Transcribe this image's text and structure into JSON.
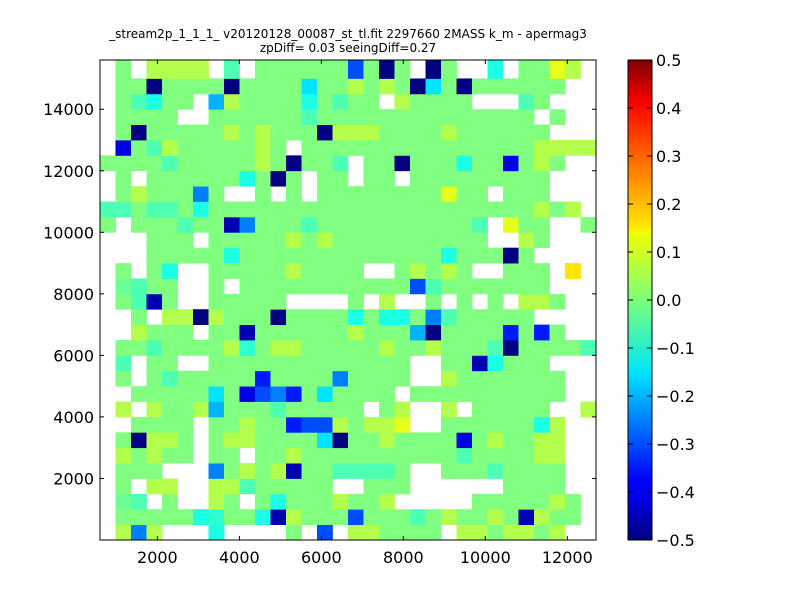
{
  "chart_data": {
    "type": "heatmap",
    "title_line1": "_stream2p_1_1_1_ v20120128_00087_st_tl.fit 2297660 2MASS k_m - apermag3",
    "title_line2": "zpDiff= 0.03 seeingDiff=0.27",
    "xlabel": "",
    "ylabel": "",
    "xlim": [
      600,
      12700
    ],
    "ylim": [
      0,
      15600
    ],
    "x_ticks": [
      "2000",
      "4000",
      "6000",
      "8000",
      "10000",
      "12000"
    ],
    "x_tick_values": [
      2000,
      4000,
      6000,
      8000,
      10000,
      12000
    ],
    "y_ticks": [
      "2000",
      "4000",
      "6000",
      "8000",
      "10000",
      "12000",
      "14000"
    ],
    "y_tick_values": [
      2000,
      4000,
      6000,
      8000,
      10000,
      12000,
      14000
    ],
    "x_edges": [
      600,
      978,
      1356,
      1734,
      2113,
      2491,
      2869,
      3247,
      3625,
      4003,
      4381,
      4759,
      5138,
      5516,
      5894,
      6272,
      6650,
      7028,
      7406,
      7784,
      8163,
      8541,
      8919,
      9297,
      9675,
      10053,
      10431,
      10809,
      11188,
      11566,
      11944,
      12322,
      12700
    ],
    "y_edges": [
      0,
      500,
      1000,
      1500,
      2000,
      2500,
      3000,
      3500,
      4000,
      4500,
      5000,
      5500,
      6000,
      6500,
      7000,
      7500,
      8000,
      8500,
      9000,
      9500,
      10000,
      10500,
      11000,
      11500,
      12000,
      12500,
      13000,
      13500,
      14000,
      14500,
      15000,
      15600
    ],
    "values": [
      [
        null,
        0.05,
        -0.25,
        0.05,
        null,
        null,
        null,
        -0.1,
        null,
        null,
        null,
        null,
        0.0,
        null,
        -0.3,
        null,
        0.05,
        0.05,
        0.0,
        0.0,
        0.0,
        0.0,
        null,
        0.05,
        0.05,
        0.0,
        0.05,
        0.05,
        0.0,
        0.05,
        null,
        null
      ],
      [
        null,
        0.0,
        0.0,
        0.0,
        0.0,
        0.0,
        -0.1,
        -0.08,
        0.0,
        0.0,
        -0.1,
        -0.45,
        0.05,
        0.0,
        0.0,
        0.0,
        -0.3,
        0.0,
        0.0,
        0.0,
        -0.05,
        0.0,
        0.05,
        0.0,
        0.0,
        0.05,
        0.0,
        -0.45,
        0.05,
        0.0,
        0.0,
        null
      ],
      [
        null,
        -0.02,
        -0.05,
        null,
        0.0,
        null,
        null,
        0.05,
        0.0,
        null,
        0.0,
        -0.1,
        0.0,
        0.0,
        0.0,
        0.05,
        0.0,
        0.0,
        0.05,
        null,
        null,
        null,
        null,
        null,
        0.0,
        0.0,
        0.0,
        0.0,
        0.0,
        0.05,
        0.0,
        null
      ],
      [
        null,
        0.0,
        null,
        0.05,
        0.05,
        null,
        null,
        0.05,
        0.05,
        -0.05,
        0.0,
        0.0,
        0.0,
        0.0,
        0.0,
        null,
        null,
        0.0,
        0.0,
        0.0,
        null,
        null,
        null,
        null,
        null,
        null,
        0.0,
        0.0,
        0.0,
        0.0,
        null,
        null
      ],
      [
        null,
        0.0,
        0.0,
        0.0,
        null,
        null,
        null,
        -0.25,
        0.0,
        0.05,
        0.0,
        0.05,
        -0.45,
        0.0,
        0.0,
        -0.05,
        -0.05,
        -0.05,
        -0.05,
        0.0,
        null,
        null,
        0.0,
        0.0,
        0.0,
        -0.05,
        0.0,
        0.0,
        0.0,
        0.0,
        null,
        null
      ],
      [
        null,
        0.05,
        0.0,
        0.05,
        0.0,
        0.0,
        null,
        0.0,
        0.0,
        null,
        0.0,
        0.0,
        0.05,
        0.0,
        0.0,
        0.0,
        0.0,
        0.0,
        0.0,
        0.0,
        0.0,
        0.0,
        0.0,
        -0.05,
        0.0,
        0.0,
        0.0,
        0.0,
        0.05,
        0.05,
        null,
        null
      ],
      [
        null,
        0.0,
        -0.5,
        0.05,
        0.05,
        0.0,
        null,
        0.0,
        0.05,
        0.05,
        0.0,
        0.0,
        0.0,
        0.0,
        -0.15,
        -0.5,
        0.0,
        0.0,
        0.05,
        0.0,
        0.0,
        0.0,
        0.0,
        -0.4,
        0.0,
        0.05,
        0.0,
        0.0,
        0.05,
        0.05,
        null,
        null
      ],
      [
        null,
        null,
        0.0,
        0.0,
        0.0,
        0.0,
        null,
        0.0,
        0.0,
        0.05,
        0.0,
        0.0,
        -0.35,
        -0.3,
        -0.3,
        0.05,
        0.0,
        0.05,
        0.05,
        0.1,
        null,
        null,
        0.0,
        0.0,
        0.0,
        0.0,
        0.0,
        0.0,
        -0.1,
        0.05,
        null,
        null
      ],
      [
        null,
        0.05,
        null,
        0.05,
        0.0,
        0.0,
        0.05,
        -0.2,
        0.0,
        0.0,
        0.0,
        -0.05,
        0.0,
        0.0,
        0.0,
        0.0,
        0.0,
        null,
        0.0,
        0.05,
        null,
        null,
        0.05,
        null,
        0.0,
        0.0,
        0.0,
        0.0,
        0.0,
        null,
        null,
        0.05
      ],
      [
        null,
        null,
        0.0,
        0.0,
        0.0,
        0.0,
        0.0,
        -0.15,
        0.0,
        -0.4,
        -0.3,
        -0.25,
        -0.35,
        0.0,
        -0.15,
        0.0,
        0.0,
        0.0,
        0.0,
        null,
        0.0,
        0.0,
        0.0,
        0.0,
        0.0,
        0.0,
        0.0,
        0.0,
        0.0,
        0.0,
        null,
        null
      ],
      [
        null,
        0.0,
        null,
        0.0,
        -0.05,
        0.0,
        0.0,
        0.0,
        0.0,
        0.0,
        -0.35,
        0.0,
        0.0,
        0.0,
        0.0,
        -0.25,
        0.0,
        0.0,
        0.0,
        0.0,
        null,
        null,
        0.05,
        0.0,
        0.0,
        0.0,
        0.0,
        0.0,
        0.0,
        0.0,
        null,
        null
      ],
      [
        null,
        -0.05,
        null,
        0.0,
        0.0,
        null,
        null,
        0.0,
        0.0,
        0.0,
        0.0,
        0.0,
        0.0,
        0.0,
        0.0,
        0.0,
        0.0,
        0.0,
        0.0,
        0.0,
        null,
        null,
        0.0,
        0.0,
        -0.45,
        -0.1,
        0.0,
        0.0,
        0.0,
        null,
        null,
        null
      ],
      [
        null,
        0.0,
        0.0,
        -0.05,
        0.0,
        0.0,
        0.0,
        0.0,
        0.05,
        -0.08,
        0.0,
        0.05,
        0.05,
        0.0,
        0.0,
        0.0,
        0.0,
        0.0,
        0.05,
        0.0,
        0.0,
        0.05,
        0.0,
        0.0,
        0.0,
        -0.05,
        -0.5,
        0.0,
        0.0,
        0.0,
        0.0,
        -0.05
      ],
      [
        null,
        null,
        0.05,
        0.0,
        0.0,
        0.0,
        null,
        0.0,
        0.0,
        -0.45,
        0.0,
        0.0,
        0.0,
        0.0,
        0.0,
        0.0,
        0.05,
        0.0,
        0.0,
        0.0,
        -0.2,
        -0.5,
        0.0,
        0.0,
        0.0,
        0.0,
        -0.35,
        0.0,
        -0.35,
        0.0,
        null,
        null
      ],
      [
        null,
        null,
        0.0,
        null,
        0.05,
        0.05,
        -0.5,
        0.05,
        0.0,
        0.0,
        0.0,
        -0.5,
        0.0,
        0.0,
        0.0,
        0.0,
        -0.1,
        0.0,
        -0.1,
        -0.1,
        0.0,
        -0.25,
        -0.05,
        0.0,
        0.0,
        0.0,
        0.0,
        0.0,
        null,
        null,
        null,
        null
      ],
      [
        null,
        0.0,
        -0.05,
        -0.45,
        0.0,
        null,
        null,
        0.0,
        0.0,
        0.0,
        0.0,
        0.0,
        null,
        null,
        null,
        null,
        0.0,
        null,
        0.05,
        null,
        null,
        0.0,
        null,
        0.0,
        null,
        0.0,
        null,
        0.05,
        0.05,
        0.0,
        null,
        null
      ],
      [
        null,
        -0.02,
        -0.05,
        0.0,
        0.0,
        null,
        null,
        0.0,
        null,
        0.0,
        0.0,
        0.0,
        0.0,
        0.0,
        0.0,
        0.0,
        0.0,
        0.0,
        0.0,
        0.0,
        -0.3,
        -0.05,
        0.0,
        0.0,
        0.0,
        0.0,
        0.0,
        0.0,
        0.0,
        null,
        null,
        null
      ],
      [
        null,
        0.0,
        null,
        0.0,
        -0.1,
        null,
        null,
        0.0,
        0.0,
        0.0,
        0.0,
        0.0,
        0.05,
        0.0,
        0.0,
        0.0,
        0.0,
        null,
        null,
        0.0,
        0.05,
        0.0,
        0.05,
        0.0,
        null,
        null,
        0.0,
        0.0,
        0.0,
        null,
        0.15,
        null
      ],
      [
        null,
        null,
        null,
        0.0,
        0.0,
        0.0,
        0.0,
        0.0,
        -0.1,
        0.0,
        0.0,
        0.0,
        0.0,
        0.0,
        0.0,
        0.0,
        0.0,
        0.0,
        0.0,
        0.0,
        0.0,
        0.0,
        -0.1,
        0.0,
        0.0,
        0.0,
        -0.5,
        0.0,
        null,
        null,
        null,
        null
      ],
      [
        null,
        null,
        null,
        0.0,
        0.0,
        0.0,
        null,
        0.0,
        0.0,
        0.0,
        0.0,
        0.0,
        0.05,
        0.0,
        0.05,
        0.0,
        0.0,
        0.0,
        0.0,
        0.0,
        0.0,
        0.0,
        0.0,
        0.0,
        0.0,
        null,
        null,
        0.05,
        0.0,
        null,
        null,
        null
      ],
      [
        0.0,
        null,
        0.0,
        0.0,
        0.0,
        -0.05,
        0.0,
        0.0,
        -0.45,
        -0.25,
        0.0,
        0.0,
        0.0,
        -0.05,
        0.0,
        0.0,
        0.0,
        0.0,
        0.0,
        0.0,
        0.0,
        0.0,
        0.0,
        0.0,
        -0.05,
        null,
        0.1,
        0.0,
        0.0,
        null,
        null,
        0.0
      ],
      [
        -0.05,
        -0.05,
        0.0,
        -0.05,
        -0.05,
        0.0,
        -0.1,
        0.0,
        0.0,
        0.0,
        0.0,
        0.0,
        0.0,
        0.0,
        0.0,
        0.0,
        0.0,
        0.0,
        0.0,
        0.0,
        0.0,
        0.0,
        0.0,
        0.0,
        0.0,
        0.0,
        0.0,
        0.0,
        0.05,
        0.0,
        0.05,
        null
      ],
      [
        null,
        0.0,
        0.05,
        0.0,
        0.0,
        0.0,
        -0.25,
        0.0,
        null,
        null,
        0.0,
        null,
        0.0,
        null,
        0.0,
        0.0,
        0.0,
        0.0,
        0.0,
        0.0,
        0.0,
        0.0,
        0.1,
        0.0,
        0.0,
        null,
        0.0,
        0.0,
        0.0,
        null,
        null,
        null
      ],
      [
        null,
        0.0,
        null,
        0.0,
        0.0,
        0.0,
        0.0,
        0.0,
        0.0,
        -0.1,
        0.0,
        -0.5,
        0.0,
        null,
        0.0,
        0.0,
        null,
        0.0,
        0.0,
        null,
        0.0,
        0.0,
        0.0,
        0.0,
        0.0,
        0.0,
        0.0,
        0.0,
        0.0,
        null,
        null,
        null
      ],
      [
        0.0,
        0.0,
        0.0,
        0.0,
        -0.05,
        0.0,
        0.0,
        0.0,
        0.0,
        0.0,
        0.05,
        0.0,
        -0.5,
        0.0,
        0.0,
        -0.05,
        null,
        0.0,
        0.0,
        -0.5,
        0.0,
        0.0,
        0.0,
        -0.1,
        0.0,
        0.0,
        -0.4,
        0.0,
        0.05,
        0.0,
        null,
        null
      ],
      [
        null,
        -0.4,
        0.0,
        -0.05,
        0.05,
        0.0,
        0.0,
        0.0,
        0.0,
        0.0,
        0.05,
        0.0,
        null,
        0.0,
        0.0,
        0.0,
        0.0,
        0.0,
        0.0,
        0.0,
        0.0,
        0.0,
        0.0,
        0.0,
        0.0,
        0.0,
        0.0,
        0.0,
        0.05,
        0.05,
        0.05,
        0.05
      ],
      [
        null,
        0.0,
        -0.5,
        0.0,
        0.0,
        0.0,
        0.0,
        0.0,
        0.05,
        0.0,
        0.05,
        0.0,
        0.0,
        0.0,
        -0.5,
        0.05,
        0.05,
        0.05,
        0.0,
        0.0,
        0.0,
        0.0,
        0.05,
        0.0,
        0.0,
        0.0,
        0.0,
        0.0,
        0.0,
        null,
        null,
        null
      ],
      [
        null,
        0.0,
        0.0,
        0.0,
        0.0,
        null,
        null,
        0.0,
        0.0,
        0.0,
        0.0,
        0.0,
        0.0,
        -0.05,
        0.0,
        0.0,
        0.0,
        0.0,
        0.0,
        0.0,
        0.0,
        0.0,
        0.0,
        0.0,
        0.0,
        0.0,
        0.0,
        0.0,
        null,
        0.0,
        null,
        null
      ],
      [
        null,
        0.0,
        -0.05,
        -0.1,
        0.0,
        0.0,
        null,
        -0.2,
        0.05,
        0.0,
        0.0,
        0.0,
        0.0,
        -0.1,
        0.0,
        -0.05,
        0.0,
        0.0,
        null,
        0.05,
        0.0,
        0.0,
        0.0,
        0.0,
        null,
        null,
        null,
        -0.05,
        0.0,
        null,
        null,
        null
      ],
      [
        null,
        0.0,
        0.0,
        -0.5,
        0.0,
        0.0,
        0.0,
        0.0,
        -0.5,
        0.0,
        0.0,
        0.0,
        0.0,
        -0.15,
        0.0,
        0.0,
        0.05,
        0.0,
        0.05,
        0.0,
        -0.5,
        -0.15,
        0.0,
        -0.5,
        0.0,
        0.0,
        0.0,
        0.0,
        0.0,
        0.0,
        null,
        null
      ],
      [
        null,
        0.0,
        null,
        0.05,
        0.05,
        0.05,
        0.05,
        null,
        -0.05,
        null,
        0.0,
        0.0,
        0.0,
        0.0,
        0.0,
        0.0,
        -0.3,
        0.0,
        -0.5,
        0.0,
        null,
        -0.5,
        0.0,
        null,
        null,
        -0.1,
        null,
        0.0,
        0.0,
        0.1,
        0.05,
        null
      ]
    ],
    "colorbar": {
      "colormap": "jet",
      "range": [
        -0.5,
        0.5
      ],
      "ticks": [
        "0.5",
        "0.4",
        "0.3",
        "0.2",
        "0.1",
        "0.0",
        "−0.1",
        "−0.2",
        "−0.3",
        "−0.4",
        "−0.5"
      ],
      "tick_values": [
        0.5,
        0.4,
        0.3,
        0.2,
        0.1,
        0.0,
        -0.1,
        -0.2,
        -0.3,
        -0.4,
        -0.5
      ]
    }
  }
}
